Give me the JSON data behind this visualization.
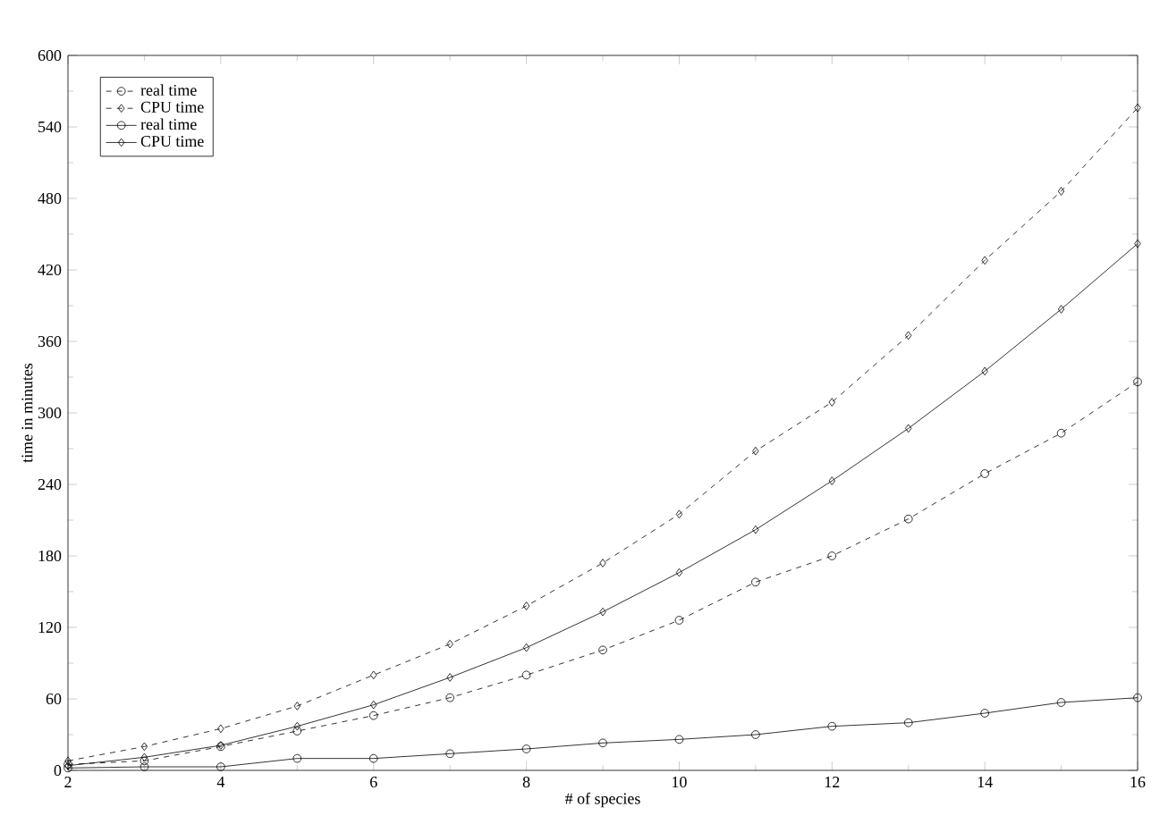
{
  "chart_data": {
    "type": "line",
    "xlabel": "# of species",
    "ylabel": "time in minutes",
    "x": [
      2,
      3,
      4,
      5,
      6,
      7,
      8,
      9,
      10,
      11,
      12,
      13,
      14,
      15,
      16
    ],
    "xlim": [
      2,
      16
    ],
    "ylim": [
      0,
      600
    ],
    "xticks": [
      2,
      4,
      6,
      8,
      10,
      12,
      14,
      16
    ],
    "yticks": [
      0,
      60,
      120,
      180,
      240,
      300,
      360,
      420,
      480,
      540,
      600
    ],
    "legend": "top left",
    "series": [
      {
        "name": "real time",
        "color": "#000000",
        "marker": "circle",
        "line_style": "dashed",
        "values": [
          5,
          8,
          20,
          33,
          46,
          61,
          80,
          101,
          126,
          158,
          180,
          211,
          249,
          283,
          326
        ]
      },
      {
        "name": "CPU time",
        "color": "#000000",
        "marker": "diamond",
        "line_style": "dashed",
        "values": [
          8,
          20,
          35,
          54,
          80,
          106,
          138,
          174,
          215,
          268,
          309,
          365,
          428,
          486,
          556
        ]
      },
      {
        "name": "real time",
        "color": "#000000",
        "marker": "circle",
        "line_style": "solid",
        "values": [
          2,
          3,
          3,
          10,
          10,
          14,
          18,
          23,
          26,
          30,
          37,
          40,
          48,
          57,
          61
        ]
      },
      {
        "name": "CPU time",
        "color": "#000000",
        "marker": "diamond",
        "line_style": "solid",
        "values": [
          4,
          11,
          21,
          37,
          55,
          78,
          103,
          133,
          166,
          202,
          243,
          287,
          335,
          387,
          442
        ]
      }
    ]
  }
}
